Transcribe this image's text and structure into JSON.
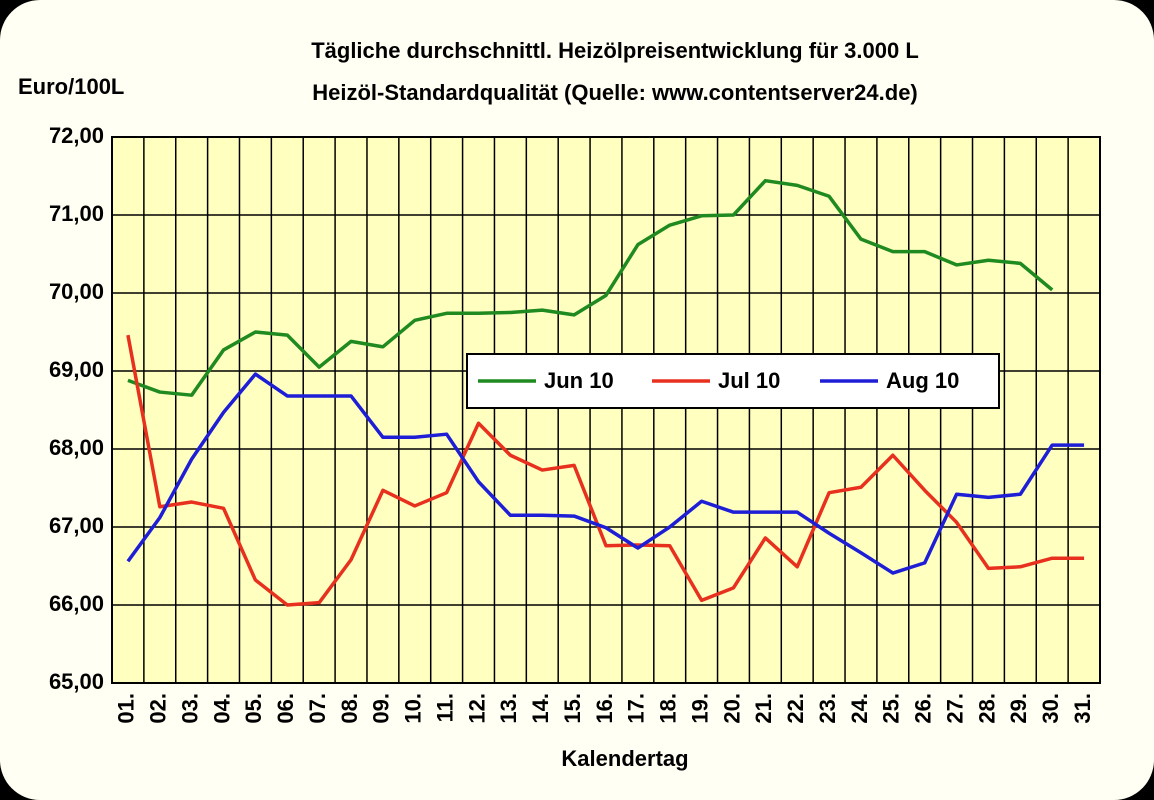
{
  "chart_data": {
    "type": "line",
    "title": "Tägliche durchschnittl. Heizölpreisentwicklung für 3.000 L",
    "subtitle": "Heizöl-Standardqualität (Quelle: www.contentserver24.de)",
    "y_label": "Euro/100L",
    "x_label": "Kalendertag",
    "categories": [
      "01.",
      "02.",
      "03.",
      "04.",
      "05.",
      "06.",
      "07.",
      "08.",
      "09.",
      "10.",
      "11.",
      "12.",
      "13.",
      "14.",
      "15.",
      "16.",
      "17.",
      "18.",
      "19.",
      "20.",
      "21.",
      "22.",
      "23.",
      "24.",
      "25.",
      "26.",
      "27.",
      "28.",
      "29.",
      "30.",
      "31."
    ],
    "series": [
      {
        "name": "Jun 10",
        "color": "#1f8a1f",
        "values": [
          68.88,
          68.73,
          68.69,
          69.27,
          69.5,
          69.46,
          69.05,
          69.38,
          69.31,
          69.65,
          69.74,
          69.74,
          69.75,
          69.78,
          69.72,
          69.97,
          70.62,
          70.87,
          70.99,
          71.0,
          71.44,
          71.38,
          71.24,
          70.69,
          70.53,
          70.53,
          70.36,
          70.42,
          70.38,
          70.04,
          null
        ]
      },
      {
        "name": "Jul 10",
        "color": "#e8301e",
        "values": [
          69.46,
          67.26,
          67.32,
          67.24,
          66.32,
          66.0,
          66.03,
          66.58,
          67.47,
          67.27,
          67.44,
          68.33,
          67.92,
          67.73,
          67.79,
          66.76,
          66.77,
          66.76,
          66.06,
          66.22,
          66.86,
          66.49,
          67.44,
          67.51,
          67.92,
          67.47,
          67.06,
          66.47,
          66.49,
          66.6,
          66.6
        ]
      },
      {
        "name": "Aug 10",
        "color": "#1e1ed6",
        "values": [
          66.56,
          67.12,
          67.87,
          68.47,
          68.96,
          68.68,
          68.68,
          68.68,
          68.15,
          68.15,
          68.19,
          67.58,
          67.15,
          67.15,
          67.14,
          66.99,
          66.73,
          67.0,
          67.33,
          67.19,
          67.19,
          67.19,
          66.92,
          66.67,
          66.41,
          66.54,
          67.42,
          67.38,
          67.42,
          68.05,
          68.05
        ]
      }
    ],
    "ylim": [
      65,
      72
    ],
    "yticks": [
      {
        "value": 65,
        "label": "65,00"
      },
      {
        "value": 66,
        "label": "66,00"
      },
      {
        "value": 67,
        "label": "67,00"
      },
      {
        "value": 68,
        "label": "68,00"
      },
      {
        "value": 69,
        "label": "69,00"
      },
      {
        "value": 70,
        "label": "70,00"
      },
      {
        "value": 71,
        "label": "71,00"
      },
      {
        "value": 72,
        "label": "72,00"
      }
    ],
    "grid": true,
    "plot_background": "#ffffc0"
  }
}
